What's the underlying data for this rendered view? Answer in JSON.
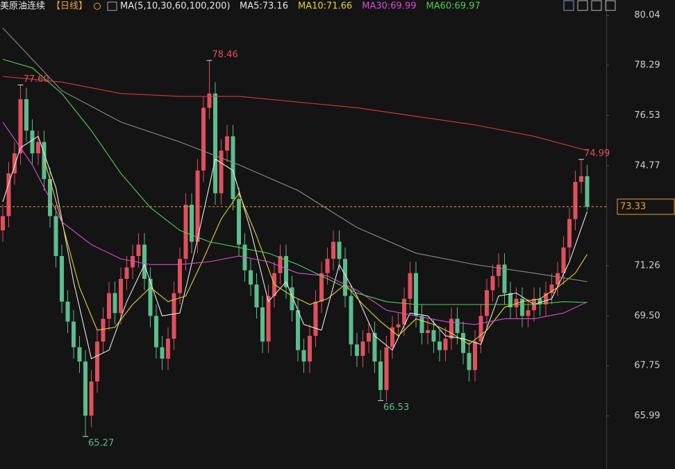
{
  "chart_data": {
    "type": "candlestick",
    "title": "美原油连续",
    "subtitle": "【日线】",
    "indicator": "MA(5,10,30,60,100,200)",
    "up_color": "#e0505c",
    "down_color": "#5cbd8c",
    "ylim": [
      64.13,
      80.58
    ],
    "yticks": [
      80.04,
      78.29,
      76.53,
      74.77,
      71.26,
      {
        "value": 69.5,
        "label": "69.50"
      },
      67.75,
      65.99
    ],
    "last_price": 73.33,
    "last_price_color": "#e8a33a",
    "open": [
      72.5,
      73.0,
      74.5,
      75.2,
      77.1,
      76.0,
      75.2,
      75.6,
      74.3,
      73.0,
      71.6,
      70.0,
      69.3,
      68.4,
      67.9,
      66.0,
      67.2,
      68.6,
      69.4,
      70.3,
      69.6,
      70.8,
      71.2,
      71.6,
      72.0,
      70.8,
      69.5,
      68.4,
      68.0,
      68.7,
      70.3,
      71.5,
      73.4,
      72.1,
      74.6,
      76.8,
      77.3,
      73.8,
      75.3,
      75.8,
      73.6,
      72.0,
      71.1,
      70.6,
      69.8,
      68.6,
      70.2,
      71.0,
      71.6,
      70.5,
      69.7,
      68.3,
      67.9,
      68.8,
      70.0,
      71.0,
      71.5,
      72.1,
      71.5,
      70.2,
      68.5,
      68.1,
      68.6,
      68.9,
      67.9,
      66.9,
      68.4,
      69.1,
      69.2,
      70.1,
      71.0,
      69.5,
      68.9,
      69.0,
      68.6,
      68.3,
      68.7,
      69.4,
      68.9,
      68.2,
      67.6,
      68.6,
      69.5,
      70.4,
      70.9,
      71.3,
      70.3,
      69.8,
      70.1,
      69.5,
      69.7,
      70.1,
      69.9,
      70.3,
      70.6,
      71.0,
      71.9,
      72.9,
      74.2,
      74.4
    ],
    "high": [
      73.4,
      74.9,
      75.6,
      77.6,
      77.5,
      76.4,
      76.0,
      76.0,
      74.7,
      73.4,
      72.0,
      70.4,
      69.7,
      68.8,
      68.3,
      67.6,
      69.0,
      69.8,
      70.7,
      70.7,
      71.2,
      71.6,
      72.0,
      72.4,
      72.4,
      71.2,
      69.9,
      68.8,
      69.1,
      70.7,
      71.9,
      73.8,
      73.8,
      75.0,
      77.2,
      78.46,
      77.7,
      75.7,
      76.2,
      76.2,
      74.0,
      72.4,
      71.5,
      71.0,
      70.2,
      70.6,
      71.4,
      72.0,
      72.0,
      70.9,
      70.1,
      68.7,
      69.2,
      70.4,
      71.4,
      71.9,
      72.5,
      72.5,
      71.9,
      70.6,
      68.9,
      69.0,
      69.3,
      69.3,
      68.3,
      68.8,
      69.5,
      69.6,
      70.5,
      71.4,
      71.4,
      69.9,
      69.4,
      69.4,
      69.0,
      69.1,
      69.8,
      69.8,
      69.3,
      68.6,
      69.0,
      69.9,
      70.8,
      71.3,
      71.7,
      71.7,
      70.7,
      70.5,
      70.5,
      70.1,
      70.5,
      70.5,
      70.7,
      71.0,
      71.4,
      72.3,
      73.3,
      74.6,
      74.99,
      74.8
    ],
    "low": [
      72.1,
      72.6,
      74.1,
      74.8,
      75.6,
      74.8,
      74.8,
      73.9,
      72.6,
      71.2,
      69.6,
      68.9,
      68.0,
      67.5,
      65.27,
      65.6,
      66.8,
      68.2,
      69.0,
      69.2,
      69.2,
      70.4,
      70.8,
      71.2,
      70.4,
      69.1,
      68.0,
      67.6,
      67.6,
      68.3,
      69.9,
      71.1,
      71.7,
      71.7,
      74.2,
      76.4,
      73.4,
      73.4,
      74.9,
      73.2,
      71.6,
      70.7,
      70.2,
      69.4,
      68.2,
      68.2,
      69.8,
      70.6,
      70.1,
      69.3,
      67.9,
      67.5,
      67.5,
      68.4,
      69.6,
      70.6,
      71.1,
      71.1,
      69.8,
      68.1,
      67.7,
      67.7,
      68.2,
      67.5,
      66.53,
      66.5,
      68.0,
      68.7,
      68.8,
      69.7,
      69.1,
      68.5,
      68.5,
      68.2,
      67.9,
      67.9,
      68.3,
      68.5,
      67.8,
      67.2,
      67.2,
      68.2,
      69.1,
      70.0,
      70.5,
      69.9,
      69.4,
      69.4,
      69.1,
      69.1,
      69.3,
      69.5,
      69.5,
      69.9,
      70.2,
      70.6,
      71.5,
      72.5,
      73.8,
      73.2
    ],
    "close": [
      73.0,
      74.5,
      75.2,
      77.1,
      76.0,
      75.2,
      75.6,
      74.3,
      73.0,
      71.6,
      70.0,
      69.3,
      68.4,
      67.9,
      66.0,
      67.2,
      68.6,
      69.4,
      70.3,
      69.6,
      70.8,
      71.2,
      71.6,
      72.0,
      70.8,
      69.5,
      68.4,
      68.0,
      68.7,
      70.3,
      71.5,
      73.4,
      72.1,
      74.6,
      76.8,
      77.3,
      73.8,
      75.3,
      75.8,
      73.6,
      72.0,
      71.1,
      70.6,
      69.8,
      68.6,
      70.2,
      71.0,
      71.6,
      70.5,
      69.7,
      68.3,
      67.9,
      68.8,
      70.0,
      71.0,
      71.5,
      72.1,
      71.5,
      70.2,
      68.5,
      68.1,
      68.6,
      68.9,
      67.9,
      66.9,
      68.4,
      69.1,
      69.2,
      70.1,
      71.0,
      69.5,
      68.9,
      69.0,
      68.6,
      68.3,
      68.7,
      69.4,
      68.9,
      68.2,
      67.6,
      68.6,
      69.5,
      70.4,
      70.9,
      71.3,
      70.3,
      69.8,
      70.1,
      69.5,
      69.7,
      70.1,
      69.9,
      70.3,
      70.6,
      71.0,
      71.9,
      72.9,
      74.2,
      74.4,
      73.33
    ],
    "series": [
      {
        "name": "MA5:73.16",
        "color": "#e8e8e8",
        "x": [
          0,
          3,
          6,
          9,
          12,
          15,
          18,
          21,
          24,
          27,
          30,
          33,
          36,
          39,
          42,
          45,
          48,
          51,
          54,
          57,
          60,
          63,
          66,
          69,
          72,
          75,
          78,
          81,
          84,
          87,
          90,
          93,
          96,
          99
        ],
        "values": [
          73.5,
          75.4,
          75.8,
          74.0,
          70.7,
          68.0,
          68.3,
          70.0,
          71.3,
          69.5,
          69.6,
          72.2,
          75.0,
          74.6,
          72.5,
          70.0,
          70.7,
          69.2,
          69.0,
          71.3,
          70.2,
          68.8,
          68.3,
          69.6,
          69.5,
          68.8,
          68.7,
          68.5,
          70.2,
          70.3,
          69.9,
          70.1,
          71.4,
          73.16
        ]
      },
      {
        "name": "MA10:71.66",
        "color": "#e6d23c",
        "x": [
          7,
          10,
          13,
          16,
          19,
          22,
          25,
          28,
          31,
          34,
          37,
          40,
          43,
          46,
          49,
          52,
          55,
          58,
          61,
          64,
          67,
          70,
          73,
          76,
          79,
          82,
          85,
          88,
          91,
          94,
          97,
          99
        ],
        "values": [
          75.0,
          72.8,
          70.5,
          69.0,
          69.1,
          69.9,
          70.5,
          70.0,
          70.2,
          71.5,
          72.9,
          73.8,
          72.3,
          70.6,
          70.2,
          69.9,
          70.1,
          70.6,
          69.9,
          69.3,
          68.8,
          69.4,
          69.2,
          68.9,
          68.5,
          69.0,
          69.8,
          70.0,
          70.1,
          70.5,
          71.0,
          71.66
        ]
      },
      {
        "name": "MA30:69.99",
        "color": "#d64fd6",
        "x": [
          0,
          5,
          10,
          15,
          20,
          25,
          30,
          35,
          40,
          45,
          50,
          55,
          60,
          65,
          70,
          75,
          80,
          85,
          90,
          95,
          99
        ],
        "values": [
          76.3,
          74.8,
          72.8,
          72.0,
          71.5,
          71.3,
          71.3,
          71.4,
          71.6,
          71.4,
          71.0,
          70.9,
          70.4,
          69.7,
          69.5,
          69.3,
          69.2,
          69.4,
          69.4,
          69.6,
          69.99
        ]
      },
      {
        "name": "MA60:69.97",
        "color": "#4fcf4f",
        "x": [
          0,
          5,
          10,
          15,
          20,
          25,
          30,
          35,
          40,
          45,
          50,
          55,
          60,
          65,
          70,
          75,
          80,
          85,
          90,
          95,
          99
        ],
        "values": [
          78.5,
          78.2,
          77.3,
          76.0,
          74.5,
          73.3,
          72.5,
          72.1,
          71.9,
          71.7,
          71.3,
          70.8,
          70.3,
          70.0,
          69.9,
          69.9,
          69.9,
          69.9,
          69.9,
          70.0,
          69.97
        ]
      },
      {
        "color": "#8c8c8c",
        "x": [
          0,
          10,
          20,
          30,
          40,
          50,
          60,
          70,
          80,
          90,
          99
        ],
        "values": [
          79.6,
          77.4,
          76.3,
          75.6,
          74.8,
          73.9,
          72.6,
          71.7,
          71.3,
          71.0,
          70.7
        ]
      },
      {
        "color": "#d93a3a",
        "x": [
          0,
          10,
          20,
          30,
          40,
          50,
          60,
          70,
          80,
          90,
          99
        ],
        "values": [
          77.9,
          77.7,
          77.3,
          77.2,
          77.2,
          77.0,
          76.8,
          76.5,
          76.2,
          75.8,
          75.3
        ]
      }
    ],
    "annotations": [
      {
        "index": 3,
        "value": 77.6,
        "label": "77.60"
      },
      {
        "index": 35,
        "value": 78.46,
        "label": "78.46"
      },
      {
        "index": 14,
        "value": 65.27,
        "label": "65.27"
      },
      {
        "index": 64,
        "value": 66.53,
        "label": "66.53"
      },
      {
        "index": 98,
        "value": 74.99,
        "label": "74.99"
      }
    ]
  }
}
